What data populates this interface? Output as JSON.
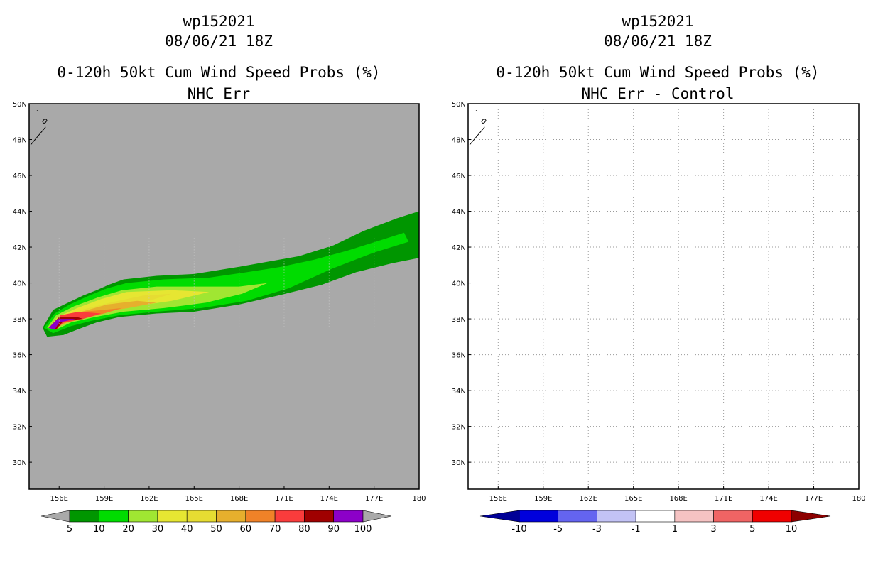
{
  "chart_data": [
    {
      "type": "heatmap",
      "title_lines": [
        "wp152021",
        "08/06/21 18Z",
        "0-120h 50kt Cum Wind Speed Probs (%)",
        "NHC Err"
      ],
      "x_range": [
        154,
        180
      ],
      "y_range": [
        28.5,
        50
      ],
      "x_ticks": [
        156,
        159,
        162,
        165,
        168,
        171,
        174,
        177,
        180
      ],
      "x_tick_labels": [
        "156E",
        "159E",
        "162E",
        "165E",
        "168E",
        "171E",
        "174E",
        "177E",
        "180"
      ],
      "y_ticks": [
        30,
        32,
        34,
        36,
        38,
        40,
        42,
        44,
        46,
        48,
        50
      ],
      "y_tick_labels": [
        "30N",
        "32N",
        "34N",
        "36N",
        "38N",
        "40N",
        "42N",
        "44N",
        "46N",
        "48N",
        "50N"
      ],
      "background_color": "#a9a9a9",
      "contour_bands": [
        {
          "min": 5,
          "color": "#009600",
          "polygon": [
            [
              154.9,
              37.5
            ],
            [
              155.6,
              38.5
            ],
            [
              156.6,
              38.9
            ],
            [
              157.6,
              39.3
            ],
            [
              158.5,
              39.6
            ],
            [
              159.3,
              39.9
            ],
            [
              160.3,
              40.2
            ],
            [
              162.5,
              40.4
            ],
            [
              165,
              40.5
            ],
            [
              168,
              40.9
            ],
            [
              170,
              41.2
            ],
            [
              172,
              41.5
            ],
            [
              174.3,
              42.1
            ],
            [
              176.3,
              42.9
            ],
            [
              178.5,
              43.6
            ],
            [
              180,
              44.0
            ],
            [
              180,
              41.4
            ],
            [
              178.2,
              41.1
            ],
            [
              175.8,
              40.6
            ],
            [
              173.5,
              39.9
            ],
            [
              170.6,
              39.3
            ],
            [
              168,
              38.8
            ],
            [
              165,
              38.4
            ],
            [
              162.5,
              38.3
            ],
            [
              160,
              38.1
            ],
            [
              158.5,
              37.8
            ],
            [
              157.2,
              37.4
            ],
            [
              156.3,
              37.1
            ],
            [
              155.2,
              37.0
            ]
          ]
        },
        {
          "min": 10,
          "color": "#00dc00",
          "polygon": [
            [
              155.0,
              37.5
            ],
            [
              155.7,
              38.3
            ],
            [
              156.7,
              38.8
            ],
            [
              158,
              39.3
            ],
            [
              159.2,
              39.7
            ],
            [
              160.5,
              40.0
            ],
            [
              163,
              40.2
            ],
            [
              166,
              40.3
            ],
            [
              168.5,
              40.6
            ],
            [
              170.8,
              40.9
            ],
            [
              173,
              41.3
            ],
            [
              175.2,
              41.8
            ],
            [
              177.5,
              42.4
            ],
            [
              179,
              42.8
            ],
            [
              179.3,
              42.3
            ],
            [
              177,
              41.7
            ],
            [
              174.2,
              40.8
            ],
            [
              171.3,
              39.7
            ],
            [
              168.5,
              39.0
            ],
            [
              165.5,
              38.6
            ],
            [
              162.5,
              38.4
            ],
            [
              160,
              38.2
            ],
            [
              158.2,
              37.9
            ],
            [
              156.8,
              37.6
            ],
            [
              155.6,
              37.2
            ]
          ]
        },
        {
          "min": 20,
          "color": "#a0e632",
          "polygon": [
            [
              155.2,
              37.5
            ],
            [
              155.8,
              38.2
            ],
            [
              157,
              38.7
            ],
            [
              158.6,
              39.2
            ],
            [
              160.2,
              39.6
            ],
            [
              162.5,
              39.8
            ],
            [
              165.5,
              39.8
            ],
            [
              168,
              39.8
            ],
            [
              169.9,
              40.0
            ],
            [
              168.2,
              39.4
            ],
            [
              165.8,
              38.9
            ],
            [
              163,
              38.6
            ],
            [
              160.3,
              38.4
            ],
            [
              158.4,
              38.1
            ],
            [
              156.8,
              37.8
            ],
            [
              155.8,
              37.4
            ]
          ]
        },
        {
          "min": 30,
          "color": "#e6e632",
          "polygon": [
            [
              155.3,
              37.5
            ],
            [
              155.9,
              38.1
            ],
            [
              157.2,
              38.6
            ],
            [
              158.8,
              39.1
            ],
            [
              160.5,
              39.5
            ],
            [
              163.5,
              39.6
            ],
            [
              166,
              39.5
            ],
            [
              163.5,
              39.0
            ],
            [
              161,
              38.7
            ],
            [
              158.8,
              38.4
            ],
            [
              157.2,
              38.0
            ],
            [
              156,
              37.6
            ]
          ]
        },
        {
          "min": 40,
          "color": "#e6dc32",
          "polygon": [
            [
              155.3,
              37.5
            ],
            [
              156,
              38.0
            ],
            [
              157.5,
              38.5
            ],
            [
              159.4,
              38.9
            ],
            [
              161.6,
              39.3
            ],
            [
              163.5,
              39.4
            ],
            [
              161.6,
              38.9
            ],
            [
              159.3,
              38.5
            ],
            [
              157.5,
              38.1
            ],
            [
              156.2,
              37.7
            ]
          ]
        },
        {
          "min": 50,
          "color": "#e6af2d",
          "polygon": [
            [
              155.3,
              37.5
            ],
            [
              156,
              38.0
            ],
            [
              157.5,
              38.4
            ],
            [
              159.2,
              38.8
            ],
            [
              161.2,
              39.0
            ],
            [
              162.5,
              38.9
            ],
            [
              160.6,
              38.6
            ],
            [
              158.4,
              38.3
            ],
            [
              156.8,
              37.9
            ],
            [
              156.0,
              37.6
            ]
          ]
        },
        {
          "min": 60,
          "color": "#f08228",
          "polygon": [
            [
              155.3,
              37.5
            ],
            [
              156.2,
              38.1
            ],
            [
              157.6,
              38.4
            ],
            [
              159.0,
              38.5
            ],
            [
              160.2,
              38.6
            ],
            [
              159.0,
              38.3
            ],
            [
              157.5,
              38.0
            ],
            [
              156.1,
              37.7
            ]
          ]
        },
        {
          "min": 70,
          "color": "#fa3c3c",
          "polygon": [
            [
              155.3,
              37.5
            ],
            [
              156.1,
              38.2
            ],
            [
              157.3,
              38.4
            ],
            [
              158.8,
              38.3
            ],
            [
              157.6,
              38.0
            ],
            [
              156.3,
              37.8
            ],
            [
              155.8,
              37.4
            ]
          ]
        },
        {
          "min": 80,
          "color": "#a00000",
          "polygon": [
            [
              155.3,
              37.5
            ],
            [
              156.0,
              38.1
            ],
            [
              157.2,
              38.1
            ],
            [
              157.6,
              38.0
            ],
            [
              156.3,
              37.9
            ],
            [
              155.8,
              37.4
            ]
          ]
        },
        {
          "min": 90,
          "color": "#8c00c8",
          "polygon": [
            [
              155.3,
              37.5
            ],
            [
              155.9,
              38.0
            ],
            [
              157.1,
              38.0
            ],
            [
              156.0,
              37.8
            ],
            [
              155.7,
              37.4
            ]
          ]
        }
      ],
      "colorbar": {
        "labels": [
          "5",
          "10",
          "20",
          "30",
          "40",
          "50",
          "60",
          "70",
          "80",
          "90",
          "100"
        ],
        "colors": [
          "#009600",
          "#00dc00",
          "#a0e632",
          "#e6e632",
          "#e6dc32",
          "#e6af2d",
          "#f08228",
          "#fa3c3c",
          "#a00000",
          "#8c00c8"
        ],
        "extend_low_color": "#a9a9a9",
        "extend_high_color": "#a9a9a9"
      }
    },
    {
      "type": "heatmap",
      "title_lines": [
        "wp152021",
        "08/06/21 18Z",
        "0-120h 50kt Cum Wind Speed Probs (%)",
        "NHC Err - Control"
      ],
      "x_range": [
        154,
        180
      ],
      "y_range": [
        28.5,
        50
      ],
      "x_ticks": [
        156,
        159,
        162,
        165,
        168,
        171,
        174,
        177,
        180
      ],
      "x_tick_labels": [
        "156E",
        "159E",
        "162E",
        "165E",
        "168E",
        "171E",
        "174E",
        "177E",
        "180"
      ],
      "y_ticks": [
        30,
        32,
        34,
        36,
        38,
        40,
        42,
        44,
        46,
        48,
        50
      ],
      "y_tick_labels": [
        "30N",
        "32N",
        "34N",
        "36N",
        "38N",
        "40N",
        "42N",
        "44N",
        "46N",
        "48N",
        "50N"
      ],
      "background_color": "#ffffff",
      "grid": true,
      "contour_bands": [],
      "colorbar": {
        "labels": [
          "-10",
          "-5",
          "-3",
          "-1",
          "1",
          "3",
          "5",
          "10"
        ],
        "colors": [
          "#0000dc",
          "#6464f0",
          "#c3c3f5",
          "#ffffff",
          "#f5c3c3",
          "#f06464",
          "#f00000"
        ],
        "extend_low_color": "#000096",
        "extend_high_color": "#8c0000"
      }
    }
  ]
}
